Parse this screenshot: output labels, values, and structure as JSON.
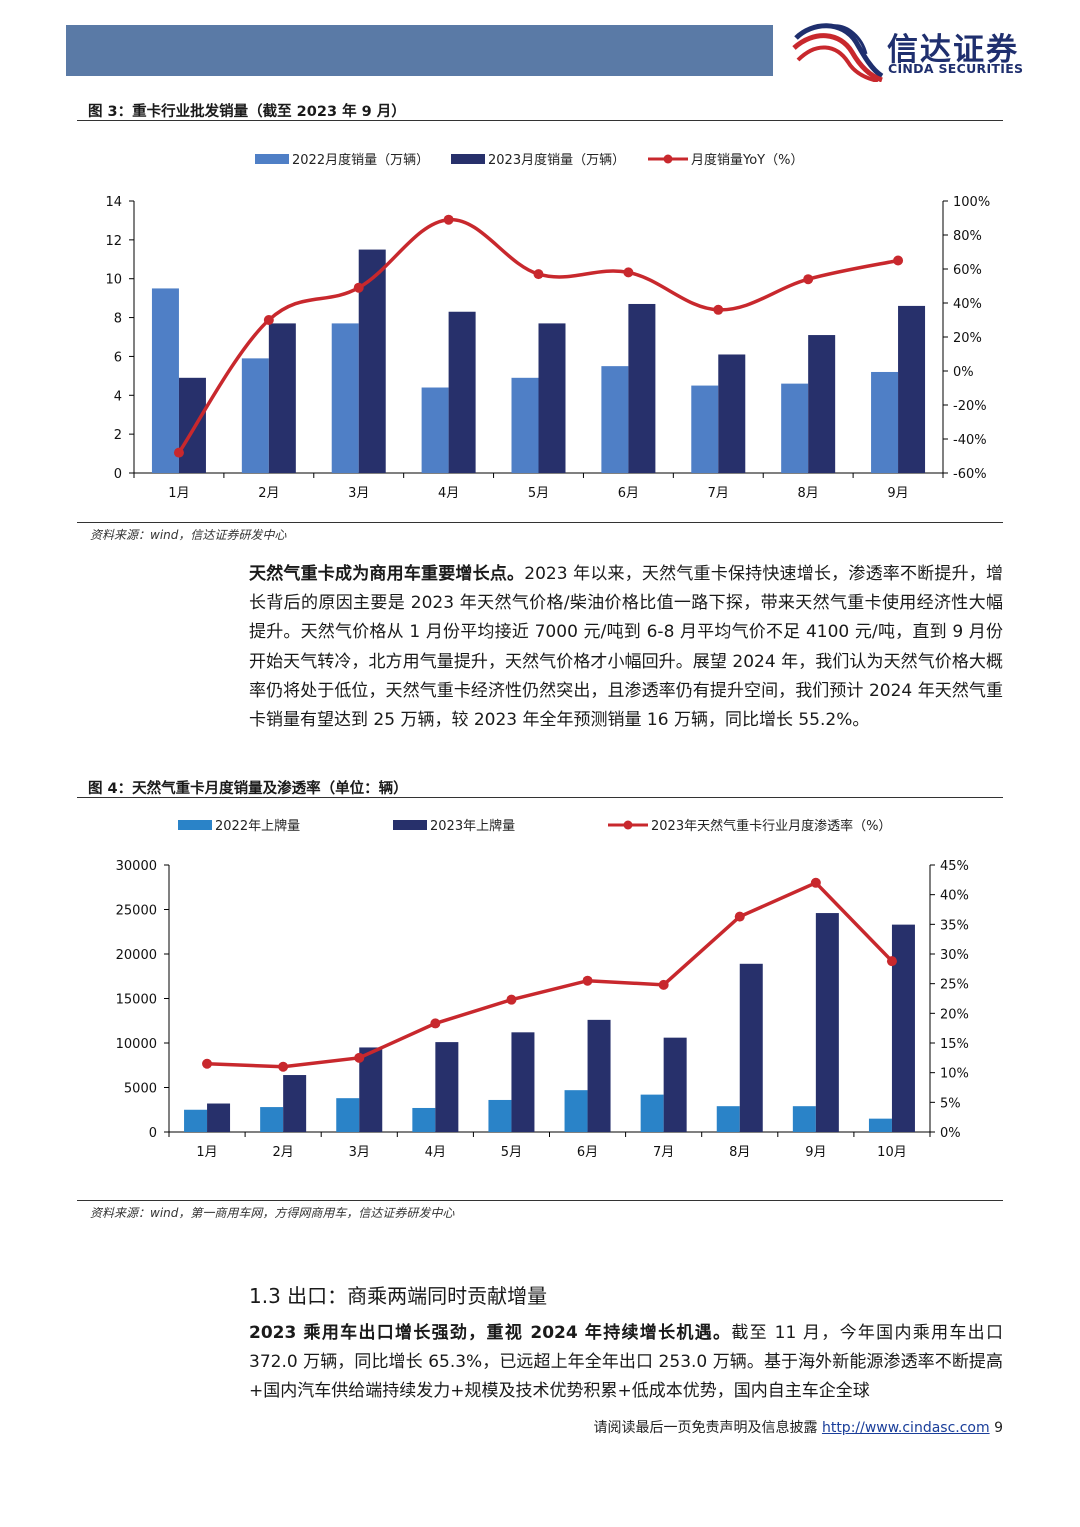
{
  "header": {
    "logo_name": "信达证券",
    "logo_sub": "CINDA SECURITIES"
  },
  "figure3": {
    "title": "图 3：重卡行业批发销量（截至 2023 年 9 月）",
    "source": "资料来源：wind，信达证券研发中心"
  },
  "figure4": {
    "title": "图 4：天然气重卡月度销量及渗透率（单位：辆）",
    "source": "资料来源：wind，第一商用车网，方得网商用车，信达证券研发中心"
  },
  "paragraph1": {
    "bold": "天然气重卡成为商用车重要增长点。",
    "text": "2023 年以来，天然气重卡保持快速增长，渗透率不断提升，增长背后的原因主要是 2023 年天然气价格/柴油价格比值一路下探，带来天然气重卡使用经济性大幅提升。天然气价格从 1 月份平均接近 7000 元/吨到 6-8 月平均气价不足 4100 元/吨，直到 9 月份开始天气转冷，北方用气量提升，天然气价格才小幅回升。展望 2024 年，我们认为天然气价格大概率仍将处于低位，天然气重卡经济性仍然突出，且渗透率仍有提升空间，我们预计 2024 年天然气重卡销量有望达到 25 万辆，较 2023 年全年预测销量 16 万辆，同比增长 55.2%。"
  },
  "section": {
    "title": "1.3 出口：商乘两端同时贡献增量"
  },
  "paragraph2": {
    "bold": "2023 乘用车出口增长强劲，重视 2024 年持续增长机遇。",
    "text": "截至 11 月，今年国内乘用车出口 372.0 万辆，同比增长 65.3%，已远超上年全年出口 253.0 万辆。基于海外新能源渗透率不断提高+国内汽车供给端持续发力+规模及技术优势积累+低成本优势，国内自主车企全球"
  },
  "footer": {
    "text": "请阅读最后一页免责声明及信息披露",
    "link": "http://www.cindasc.com",
    "page": "9"
  },
  "chart_data": [
    {
      "type": "bar",
      "categories": [
        "1月",
        "2月",
        "3月",
        "4月",
        "5月",
        "6月",
        "7月",
        "8月",
        "9月"
      ],
      "series": [
        {
          "name": "2022月度销量（万辆）",
          "type": "bar",
          "axis": "left",
          "color": "#4f7fc6",
          "values": [
            9.5,
            5.9,
            7.7,
            4.4,
            4.9,
            5.5,
            4.5,
            4.6,
            5.2
          ]
        },
        {
          "name": "2023月度销量（万辆）",
          "type": "bar",
          "axis": "left",
          "color": "#27306b",
          "values": [
            4.9,
            7.7,
            11.5,
            8.3,
            7.7,
            8.7,
            6.1,
            7.1,
            8.6
          ]
        },
        {
          "name": "月度销量YoY（%）",
          "type": "line",
          "axis": "right",
          "color": "#c8282d",
          "values": [
            -48,
            30,
            49,
            89,
            57,
            58,
            36,
            54,
            65
          ]
        }
      ],
      "ylim": [
        0,
        14
      ],
      "yticks": [
        0,
        2,
        4,
        6,
        8,
        10,
        12,
        14
      ],
      "y2lim": [
        -60,
        100
      ],
      "y2ticks": [
        -60,
        -40,
        -20,
        0,
        20,
        40,
        60,
        80,
        100
      ],
      "y2tick_labels": [
        "-60%",
        "-40%",
        "-20%",
        "0%",
        "20%",
        "40%",
        "60%",
        "80%",
        "100%"
      ],
      "legend": "top",
      "grid": false
    },
    {
      "type": "bar",
      "categories": [
        "1月",
        "2月",
        "3月",
        "4月",
        "5月",
        "6月",
        "7月",
        "8月",
        "9月",
        "10月"
      ],
      "series": [
        {
          "name": "2022年上牌量",
          "type": "bar",
          "axis": "left",
          "color": "#2a83c8",
          "values": [
            2500,
            2800,
            3800,
            2700,
            3600,
            4700,
            4200,
            2900,
            2900,
            1500
          ]
        },
        {
          "name": "2023年上牌量",
          "type": "bar",
          "axis": "left",
          "color": "#27306b",
          "values": [
            3200,
            6400,
            9500,
            10100,
            11200,
            12600,
            10600,
            18900,
            24600,
            23300
          ]
        },
        {
          "name": "2023年天然气重卡行业月度渗透率（%）",
          "type": "line",
          "axis": "right",
          "color": "#c8282d",
          "values": [
            11.5,
            11.0,
            12.5,
            18.3,
            22.3,
            25.5,
            24.8,
            36.3,
            42.0,
            28.8
          ]
        }
      ],
      "ylim": [
        0,
        30000
      ],
      "yticks": [
        0,
        5000,
        10000,
        15000,
        20000,
        25000,
        30000
      ],
      "y2lim": [
        0,
        45
      ],
      "y2ticks": [
        0,
        5,
        10,
        15,
        20,
        25,
        30,
        35,
        40,
        45
      ],
      "y2tick_labels": [
        "0%",
        "5%",
        "10%",
        "15%",
        "20%",
        "25%",
        "30%",
        "35%",
        "40%",
        "45%"
      ],
      "legend": "top",
      "grid": false
    }
  ]
}
